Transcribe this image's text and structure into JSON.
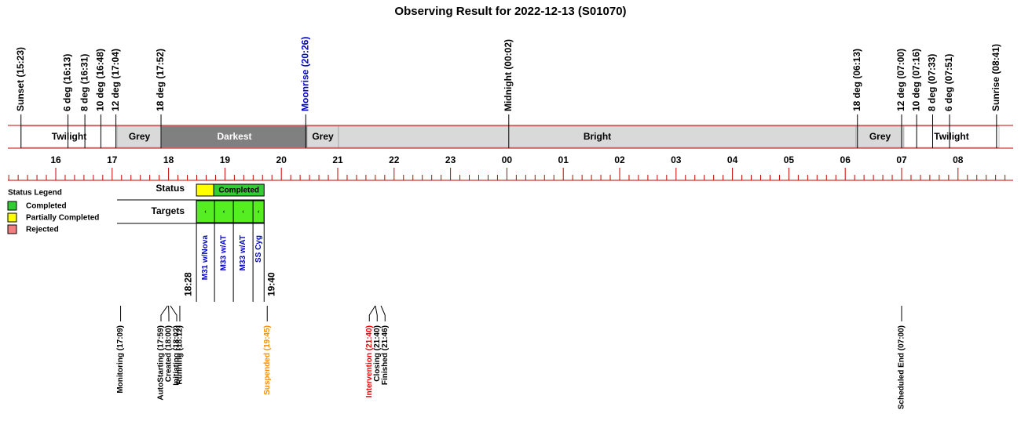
{
  "title": "Observing Result for 2022-12-13 (S01070)",
  "top_markers": [
    {
      "label": "Sunset (15:23)",
      "color": "#000000"
    },
    {
      "label": "6 deg (16:13)",
      "color": "#000000"
    },
    {
      "label": "8 deg (16:31)",
      "color": "#000000"
    },
    {
      "label": "10 deg (16:48)",
      "color": "#000000"
    },
    {
      "label": "12 deg (17:04)",
      "color": "#000000"
    },
    {
      "label": "18 deg (17:52)",
      "color": "#000000"
    },
    {
      "label": "Moonrise (20:26)",
      "color": "#0000cc"
    },
    {
      "label": "Midnight (00:02)",
      "color": "#000000"
    },
    {
      "label": "18 deg (06:13)",
      "color": "#000000"
    },
    {
      "label": "12 deg (07:00)",
      "color": "#000000"
    },
    {
      "label": "10 deg (07:16)",
      "color": "#000000"
    },
    {
      "label": "8 deg (07:33)",
      "color": "#000000"
    },
    {
      "label": "6 deg (07:51)",
      "color": "#000000"
    },
    {
      "label": "Sunrise (08:41)",
      "color": "#000000"
    }
  ],
  "bands": [
    {
      "label": "Twilight",
      "color": "#ffffff",
      "text_color": "#000000"
    },
    {
      "label": "Grey",
      "color": "#d9d9d9",
      "text_color": "#000000"
    },
    {
      "label": "Darkest",
      "color": "#808080",
      "text_color": "#ffffff"
    },
    {
      "label": "Grey",
      "color": "#d9d9d9",
      "text_color": "#000000"
    },
    {
      "label": "Bright",
      "color": "#d9d9d9",
      "text_color": "#000000"
    },
    {
      "label": "Grey",
      "color": "#d9d9d9",
      "text_color": "#000000"
    },
    {
      "label": "Twilight",
      "color": "#ffffff",
      "text_color": "#000000"
    }
  ],
  "hours": [
    "16",
    "17",
    "18",
    "19",
    "20",
    "21",
    "22",
    "23",
    "00",
    "01",
    "02",
    "03",
    "04",
    "05",
    "06",
    "07",
    "08"
  ],
  "status_legend": {
    "title": "Status Legend",
    "items": [
      {
        "label": "Completed",
        "color": "#33cc33"
      },
      {
        "label": "Partially Completed",
        "color": "#ffff00"
      },
      {
        "label": "Rejected",
        "color": "#f08080"
      }
    ]
  },
  "status": {
    "label": "Status",
    "text": "Completed"
  },
  "targets": {
    "label": "Targets",
    "names": [
      "M31 w/Nova",
      "M33 w/AT",
      "M33 w/AT",
      "SS Cyg"
    ]
  },
  "window": {
    "start": "18:28",
    "end": "19:40"
  },
  "events": [
    {
      "label": "Monitoring (17:09)",
      "color": "#000000"
    },
    {
      "label": "AutoStarting (17:59)",
      "color": "#000000"
    },
    {
      "label": "Created (18:00)",
      "color": "#000000"
    },
    {
      "label": "Initiating (18:02)",
      "color": "#000000"
    },
    {
      "label": "Running (18:12)",
      "color": "#000000"
    },
    {
      "label": "Suspended (19:45)",
      "color": "#ff8c00"
    },
    {
      "label": "Intervention (21:40)",
      "color": "#ee0000"
    },
    {
      "label": "Closing (21:40)",
      "color": "#000000"
    },
    {
      "label": "Finished (21:46)",
      "color": "#000000"
    },
    {
      "label": "Scheduled End (07:00)",
      "color": "#000000"
    }
  ]
}
